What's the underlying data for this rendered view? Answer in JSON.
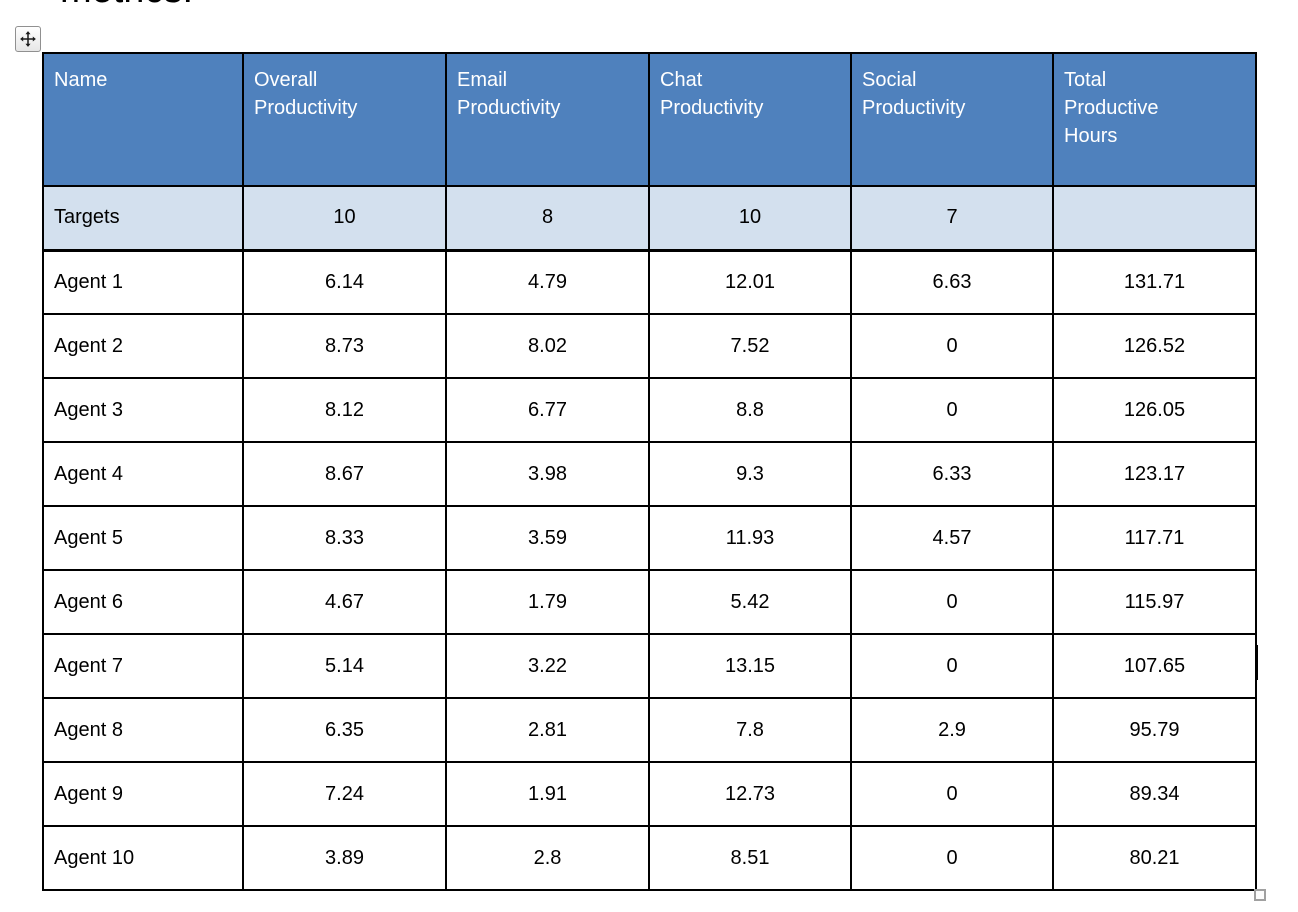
{
  "document": {
    "clipped_text": "metrics:"
  },
  "table": {
    "columns": [
      "Name",
      "Overall\nProductivity",
      "Email\nProductivity",
      "Chat\nProductivity",
      "Social\nProductivity",
      "Total\nProductive\nHours"
    ],
    "targets": {
      "label": "Targets",
      "values": [
        "10",
        "8",
        "10",
        "7",
        ""
      ]
    },
    "agents": [
      {
        "name": "Agent 1",
        "values": [
          "6.14",
          "4.79",
          "12.01",
          "6.63",
          "131.71"
        ]
      },
      {
        "name": "Agent 2",
        "values": [
          "8.73",
          "8.02",
          "7.52",
          "0",
          "126.52"
        ]
      },
      {
        "name": "Agent 3",
        "values": [
          "8.12",
          "6.77",
          "8.8",
          "0",
          "126.05"
        ]
      },
      {
        "name": "Agent 4",
        "values": [
          "8.67",
          "3.98",
          "9.3",
          "6.33",
          "123.17"
        ]
      },
      {
        "name": "Agent 5",
        "values": [
          "8.33",
          "3.59",
          "11.93",
          "4.57",
          "117.71"
        ]
      },
      {
        "name": "Agent 6",
        "values": [
          "4.67",
          "1.79",
          "5.42",
          "0",
          "115.97"
        ]
      },
      {
        "name": "Agent 7",
        "values": [
          "5.14",
          "3.22",
          "13.15",
          "0",
          "107.65"
        ]
      },
      {
        "name": "Agent 8",
        "values": [
          "6.35",
          "2.81",
          "7.8",
          "2.9",
          "95.79"
        ]
      },
      {
        "name": "Agent 9",
        "values": [
          "7.24",
          "1.91",
          "12.73",
          "0",
          "89.34"
        ]
      },
      {
        "name": "Agent 10",
        "values": [
          "3.89",
          "2.8",
          "8.51",
          "0",
          "80.21"
        ]
      }
    ]
  },
  "colors": {
    "header_bg": "#4F81BD",
    "header_text": "#FFFFFF",
    "targets_bg": "#D3E0EE",
    "border": "#000000",
    "body_text": "#000000"
  },
  "icons": {
    "move_handle": "four-way-move-arrow",
    "resize_handle": "square-resize-grip"
  }
}
